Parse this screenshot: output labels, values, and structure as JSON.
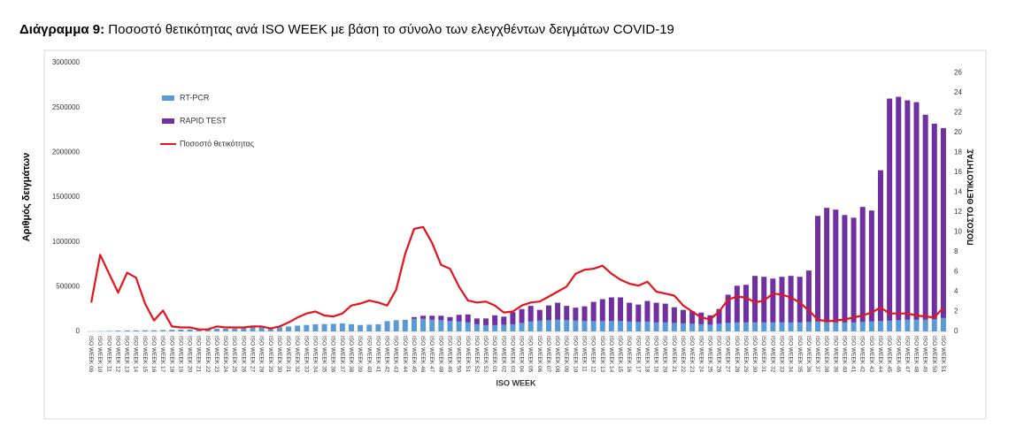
{
  "chart_data": {
    "type": "stacked-bar-line",
    "title_prefix": "Διάγραμμα 9:",
    "title": "Ποσοστό θετικότητας ανά ISO WEEK με βάση το σύνολο των ελεγχθέντων δειγμάτων COVID-19",
    "xlabel": "ISO WEEK",
    "ylabel": "Αριθμός δειγμάτων",
    "y2label": "ΠΟΣΟΣΤΟ ΘΕΤΙΚΟΤΗΤΑΣ",
    "categories": [
      "ISO WEEK 09",
      "ISO WEEK 10",
      "ISO WEEK 11",
      "ISO WEEK 12",
      "ISO WEEK 13",
      "ISO WEEK 14",
      "ISO WEEK 15",
      "ISO WEEK 16",
      "ISO WEEK 17",
      "ISO WEEK 18",
      "ISO WEEK 19",
      "ISO WEEK 20",
      "ISO WEEK 21",
      "ISO WEEK 22",
      "ISO WEEK 23",
      "ISO WEEK 24",
      "ISO WEEK 25",
      "ISO WEEK 26",
      "ISO WEEK 27",
      "ISO WEEK 28",
      "ISO WEEK 29",
      "ISO WEEK 30",
      "ISO WEEK 31",
      "ISO WEEK 32",
      "ISO WEEK 33",
      "ISO WEEK 34",
      "ISO WEEK 35",
      "ISO WEEK 36",
      "ISO WEEK 37",
      "ISO WEEK 38",
      "ISO WEEK 39",
      "ISO WEEK 40",
      "ISO WEEK 41",
      "ISO WEEK 42",
      "ISO WEEK 43",
      "ISO WEEK 44",
      "ISO WEEK 45",
      "ISO WEEK 46",
      "ISO WEEK 47",
      "ISO WEEK 48",
      "ISO WEEK 49",
      "ISO WEEK 50",
      "ISO WEEK 51",
      "ISO WEEK 52",
      "ISO WEEK 53",
      "ISO WEEK 01",
      "ISO WEEK 02",
      "ISO WEEK 03",
      "ISO WEEK 04",
      "ISO WEEK 05",
      "ISO WEEK 06",
      "ISO WEEK 07",
      "ISO WEEK 08",
      "ISO WEEK 09",
      "ISO WEEK 10",
      "ISO WEEK 11",
      "ISO WEEK 12",
      "ISO WEEK 13",
      "ISO WEEK 14",
      "ISO WEEK 15",
      "ISO WEEK 16",
      "ISO WEEK 17",
      "ISO WEEK 18",
      "ISO WEEK 19",
      "ISO WEEK 20",
      "ISO WEEK 21",
      "ISO WEEK 22",
      "ISO WEEK 23",
      "ISO WEEK 24",
      "ISO WEEK 25",
      "ISO WEEK 26",
      "ISO WEEK 27",
      "ISO WEEK 28",
      "ISO WEEK 29",
      "ISO WEEK 30",
      "ISO WEEK 31",
      "ISO WEEK 32",
      "ISO WEEK 33",
      "ISO WEEK 34",
      "ISO WEEK 35",
      "ISO WEEK 36",
      "ISO WEEK 37",
      "ISO WEEK 38",
      "ISO WEEK 39",
      "ISO WEEK 40",
      "ISO WEEK 41",
      "ISO WEEK 42",
      "ISO WEEK 43",
      "ISO WEEK 44",
      "ISO WEEK 45",
      "ISO WEEK 46",
      "ISO WEEK 47",
      "ISO WEEK 48",
      "ISO WEEK 49",
      "ISO WEEK 50",
      "ISO WEEK 51"
    ],
    "series": [
      {
        "name": "RT-PCR",
        "color": "#5b9bd5",
        "kind": "bar",
        "values": [
          1000,
          3000,
          6000,
          9000,
          11000,
          12000,
          12000,
          13000,
          15000,
          18000,
          20000,
          22000,
          22000,
          25000,
          30000,
          30000,
          32000,
          38000,
          45000,
          45000,
          42000,
          48000,
          55000,
          65000,
          72000,
          80000,
          82000,
          85000,
          90000,
          80000,
          72000,
          75000,
          80000,
          115000,
          125000,
          130000,
          140000,
          140000,
          130000,
          125000,
          115000,
          110000,
          100000,
          80000,
          70000,
          70000,
          75000,
          80000,
          95000,
          110000,
          120000,
          125000,
          130000,
          125000,
          120000,
          115000,
          115000,
          115000,
          115000,
          115000,
          110000,
          105000,
          110000,
          100000,
          100000,
          95000,
          90000,
          85000,
          80000,
          75000,
          85000,
          95000,
          100000,
          100000,
          100000,
          100000,
          100000,
          100000,
          100000,
          100000,
          105000,
          110000,
          110000,
          100000,
          100000,
          100000,
          105000,
          110000,
          115000,
          120000,
          125000,
          130000,
          130000,
          130000,
          135000,
          150000
        ]
      },
      {
        "name": "RAPID TEST",
        "color": "#7030a0",
        "kind": "bar",
        "values": [
          0,
          0,
          0,
          0,
          0,
          0,
          0,
          0,
          0,
          0,
          0,
          0,
          0,
          0,
          0,
          0,
          0,
          0,
          0,
          0,
          0,
          0,
          0,
          0,
          0,
          0,
          0,
          0,
          0,
          0,
          0,
          0,
          0,
          0,
          0,
          0,
          20000,
          35000,
          45000,
          50000,
          45000,
          75000,
          90000,
          65000,
          75000,
          110000,
          90000,
          135000,
          155000,
          175000,
          120000,
          165000,
          190000,
          160000,
          145000,
          165000,
          215000,
          245000,
          265000,
          265000,
          210000,
          195000,
          230000,
          220000,
          210000,
          175000,
          150000,
          140000,
          130000,
          105000,
          165000,
          315000,
          410000,
          420000,
          520000,
          510000,
          490000,
          510000,
          520000,
          510000,
          575000,
          1180000,
          1270000,
          1260000,
          1200000,
          1170000,
          1285000,
          1240000,
          1685000,
          2480000,
          2495000,
          2450000,
          2430000,
          2290000,
          2185000,
          2120000
        ]
      },
      {
        "name": "Ποσοστό θετικότητας",
        "color": "#e3141b",
        "kind": "line",
        "axis": "y2",
        "values": [
          2.9,
          7.7,
          5.8,
          3.9,
          5.9,
          5.4,
          2.8,
          1.1,
          2.1,
          0.5,
          0.4,
          0.4,
          0.2,
          0.2,
          0.5,
          0.4,
          0.4,
          0.4,
          0.5,
          0.5,
          0.3,
          0.5,
          0.9,
          1.4,
          1.8,
          2.0,
          1.6,
          1.5,
          1.8,
          2.6,
          2.8,
          3.1,
          2.9,
          2.6,
          4.2,
          7.8,
          10.3,
          10.5,
          8.9,
          6.7,
          6.3,
          4.5,
          3.1,
          2.9,
          3.0,
          2.6,
          1.9,
          2.0,
          2.6,
          2.9,
          3.0,
          3.5,
          4.0,
          4.5,
          5.8,
          6.2,
          6.3,
          6.6,
          5.8,
          5.2,
          4.8,
          4.6,
          5.0,
          4.0,
          3.8,
          3.6,
          2.6,
          2.0,
          1.4,
          1.2,
          2.0,
          3.2,
          3.5,
          3.4,
          2.9,
          3.1,
          3.8,
          3.7,
          3.4,
          2.9,
          2.1,
          1.2,
          1.0,
          1.1,
          1.2,
          1.4,
          1.6,
          1.9,
          2.4,
          1.8,
          1.8,
          1.8,
          1.6,
          1.5,
          1.4,
          2.4
        ]
      }
    ],
    "ylim": [
      0,
      3000000
    ],
    "yticks": [
      0,
      500000,
      1000000,
      1500000,
      2000000,
      2500000,
      3000000
    ],
    "y2lim": [
      0,
      27
    ],
    "y2ticks": [
      0,
      2,
      4,
      6,
      8,
      10,
      12,
      14,
      16,
      18,
      20,
      22,
      24,
      26
    ],
    "grid": false,
    "legend": "top-left"
  }
}
